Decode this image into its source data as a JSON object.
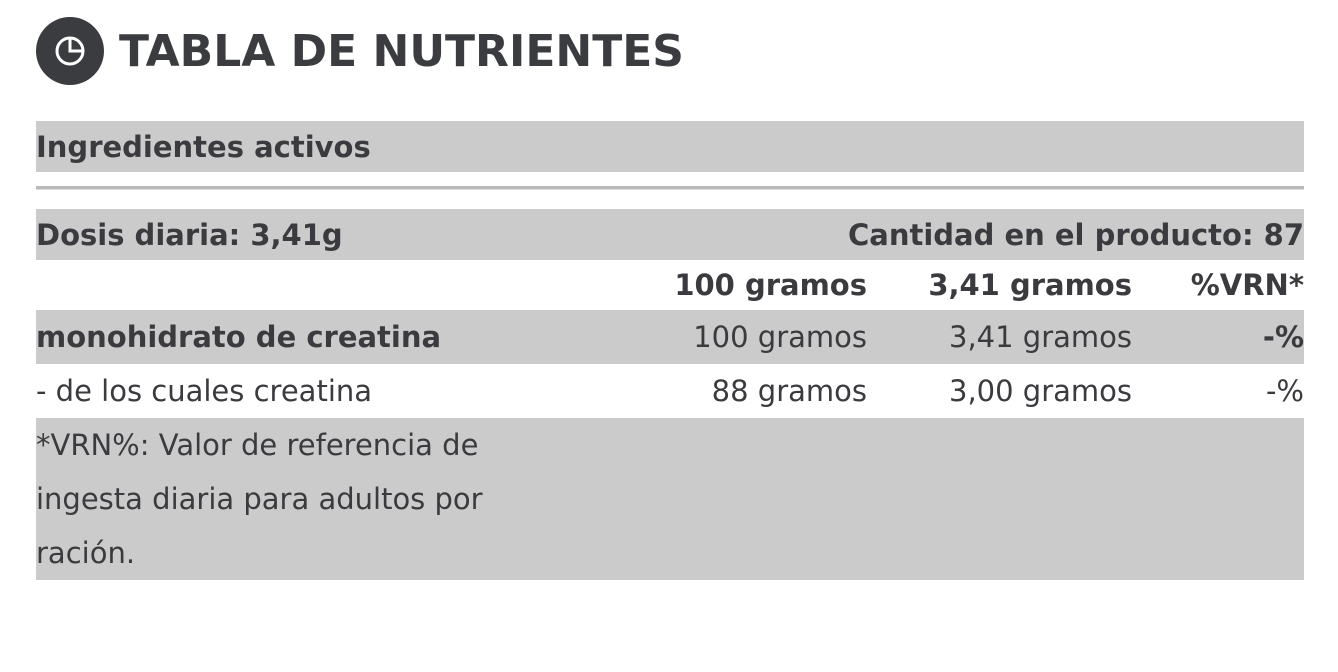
{
  "header": {
    "title": "TABLA DE NUTRIENTES",
    "icon": "pie-chart-icon"
  },
  "section": {
    "label": "Ingredientes activos"
  },
  "dose_row": {
    "daily_dose": "Dosis diaria: 3,41g",
    "servings": "Cantidad en el producto: 87"
  },
  "columns": {
    "per_100": "100 gramos",
    "per_dose": "3,41 gramos",
    "vrn": "%VRN*"
  },
  "rows": [
    {
      "name": "monohidrato de creatina",
      "per_100": "100 gramos",
      "per_dose": "3,41 gramos",
      "vrn": "-%"
    },
    {
      "name": "- de los cuales creatina",
      "per_100": "88 gramos",
      "per_dose": "3,00 gramos",
      "vrn": "-%"
    }
  ],
  "footnote": "*VRN%: Valor de referencia de ingesta diaria para adultos por ración.",
  "colors": {
    "band": "#cbcbcb",
    "text": "#3b3b3f",
    "icon_bg": "#3b3c40"
  }
}
